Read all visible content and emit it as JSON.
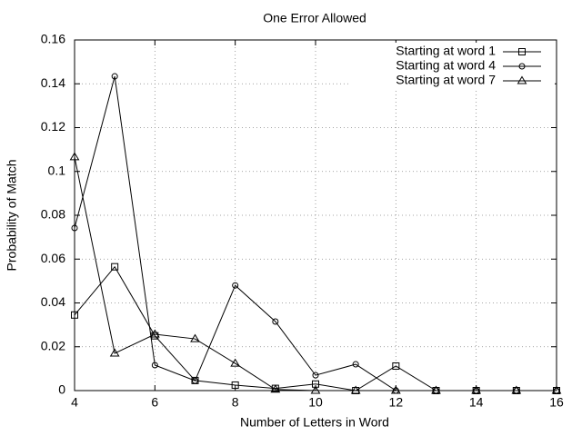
{
  "chart_data": {
    "type": "line",
    "title": "One Error Allowed",
    "x_label": "Number of Letters in Word",
    "y_label": "Probability of Match",
    "x": [
      4,
      5,
      6,
      7,
      8,
      9,
      10,
      11,
      12,
      13,
      14,
      15,
      16
    ],
    "series": [
      {
        "name": "Starting at word 1",
        "color": "#000000",
        "marker": "square",
        "values": [
          0.0345,
          0.0565,
          0.025,
          0.0046,
          0.0025,
          0.001,
          0.003,
          0,
          0.0112,
          0,
          0,
          0,
          0
        ]
      },
      {
        "name": "Starting at word 4",
        "color": "#000000",
        "marker": "circle",
        "values": [
          0.0742,
          0.1434,
          0.0116,
          0.0045,
          0.048,
          0.0315,
          0.007,
          0.012,
          0,
          0,
          0,
          0,
          0
        ]
      },
      {
        "name": "Starting at word 7",
        "color": "#000000",
        "marker": "triangle",
        "values": [
          0.1066,
          0.017,
          0.0257,
          0.0236,
          0.0124,
          0.0005,
          0,
          0,
          0,
          0,
          0,
          0,
          0
        ]
      }
    ],
    "xlim": [
      4,
      16
    ],
    "xticks": [
      4,
      6,
      8,
      10,
      12,
      14,
      16
    ],
    "ylim": [
      0,
      0.16
    ],
    "yticks": [
      0,
      0.02,
      0.04,
      0.06,
      0.08,
      0.1,
      0.12,
      0.14,
      0.16
    ],
    "grid": true,
    "legend_position": "top-right"
  }
}
